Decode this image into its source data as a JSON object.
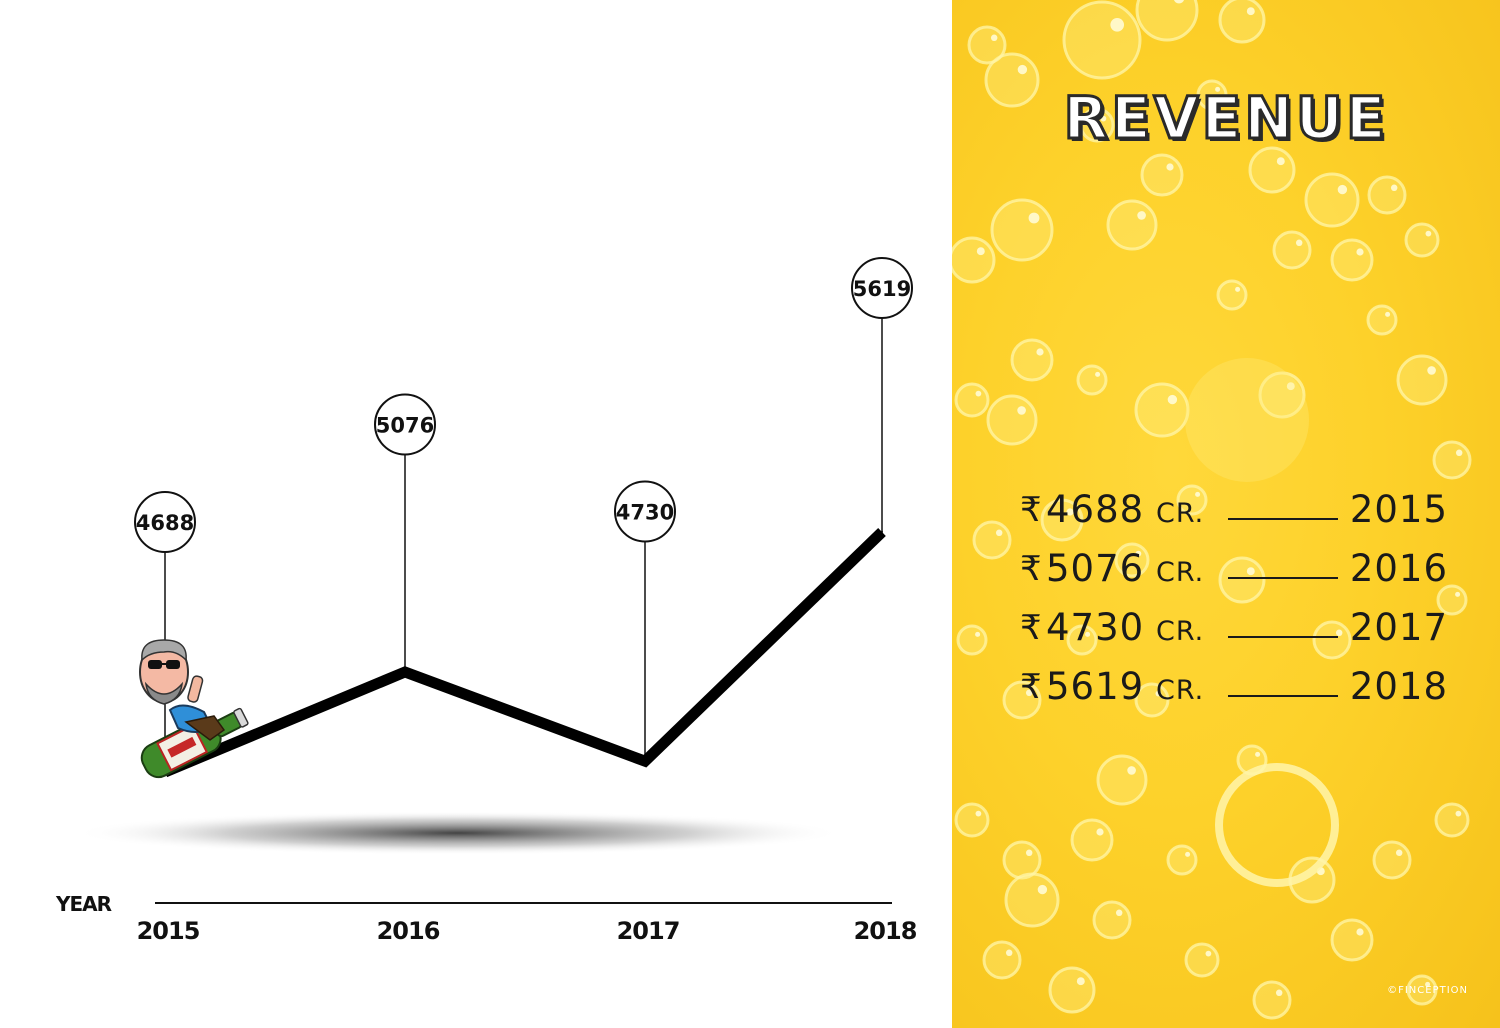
{
  "chart_data": {
    "type": "line",
    "xlabel": "YEAR",
    "ylabel": "",
    "categories": [
      "2015",
      "2016",
      "2017",
      "2018"
    ],
    "values": [
      4688,
      5076,
      4730,
      5619
    ],
    "pin_labels": [
      "4688",
      "5076",
      "4730",
      "5619"
    ],
    "ylim": [
      4400,
      5700
    ],
    "grid": false,
    "line_color": "#000000"
  },
  "panel": {
    "title": "REVENUE",
    "background_color": "#fdd12a",
    "rows": [
      {
        "currency": "₹",
        "amount": "4688",
        "unit": "CR.",
        "year": "2015"
      },
      {
        "currency": "₹",
        "amount": "5076",
        "unit": "CR.",
        "year": "2016"
      },
      {
        "currency": "₹",
        "amount": "4730",
        "unit": "CR.",
        "year": "2017"
      },
      {
        "currency": "₹",
        "amount": "5619",
        "unit": "CR.",
        "year": "2018"
      }
    ],
    "credit": "©FINCEPTION"
  },
  "mascot": {
    "icon": "man-riding-beer-bottle-icon"
  }
}
